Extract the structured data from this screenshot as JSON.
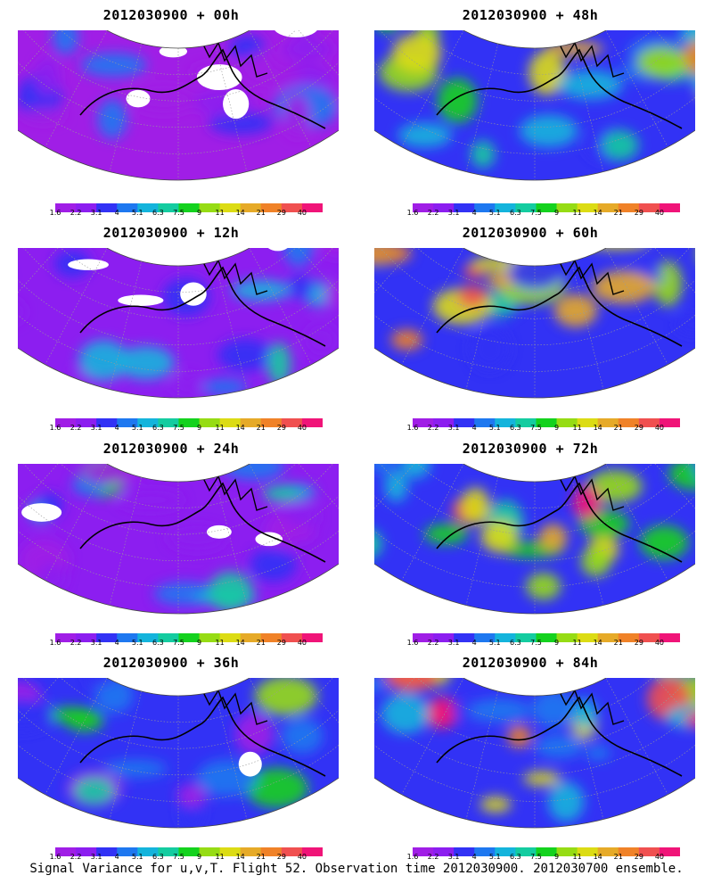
{
  "caption": "Signal Variance for u,v,T. Flight 52. Observation time 2012030900. 2012030700 ensemble.",
  "colorbar": {
    "labels": [
      "1.6",
      "2.2",
      "3.1",
      "4",
      "5.1",
      "6.3",
      "7.5",
      "9",
      "11",
      "14",
      "21",
      "29",
      "40"
    ],
    "colors": [
      "#a01ee6",
      "#8c1ef0",
      "#3232f5",
      "#1e78f0",
      "#14b4dc",
      "#14cca0",
      "#14d21e",
      "#96dc14",
      "#dcdc14",
      "#e6aa28",
      "#f08228",
      "#f05050",
      "#f01478"
    ]
  },
  "panels": [
    {
      "id": "p00",
      "title": "2012030900 + 00h",
      "intensity": 0.1
    },
    {
      "id": "p48",
      "title": "2012030900 + 48h",
      "intensity": 0.65
    },
    {
      "id": "p12",
      "title": "2012030900 + 12h",
      "intensity": 0.25
    },
    {
      "id": "p60",
      "title": "2012030900 + 60h",
      "intensity": 0.75
    },
    {
      "id": "p24",
      "title": "2012030900 + 24h",
      "intensity": 0.38
    },
    {
      "id": "p72",
      "title": "2012030900 + 72h",
      "intensity": 0.85
    },
    {
      "id": "p36",
      "title": "2012030900 + 36h",
      "intensity": 0.5
    },
    {
      "id": "p84",
      "title": "2012030900 + 84h",
      "intensity": 0.95
    }
  ]
}
